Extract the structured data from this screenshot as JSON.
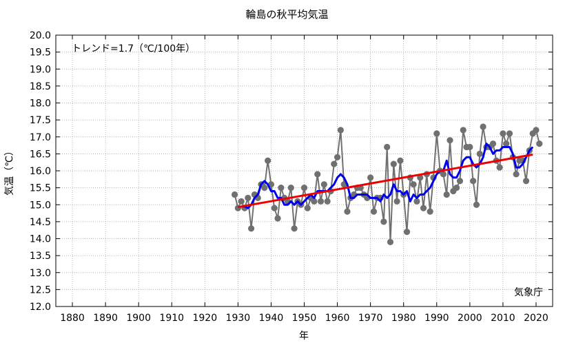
{
  "chart_data": {
    "type": "line",
    "title": "輪島の秋平均気温",
    "xlabel": "年",
    "ylabel": "気温（℃）",
    "xlim": [
      1875,
      2025
    ],
    "ylim": [
      12.0,
      20.0
    ],
    "grid": true,
    "x_ticks": [
      1880,
      1890,
      1900,
      1910,
      1920,
      1930,
      1940,
      1950,
      1960,
      1970,
      1980,
      1990,
      2000,
      2010,
      2020
    ],
    "y_ticks": [
      12.0,
      12.5,
      13.0,
      13.5,
      14.0,
      14.5,
      15.0,
      15.5,
      16.0,
      16.5,
      17.0,
      17.5,
      18.0,
      18.5,
      19.0,
      19.5,
      20.0
    ],
    "trend_label": "トレンド=1.7（℃/100年）",
    "source_label": "気象庁",
    "colors": {
      "annual": "#707070",
      "moving_average": "#0000ee",
      "trend": "#ee0000",
      "grid": "#999999"
    },
    "series": [
      {
        "kind": "annual",
        "x": [
          1929,
          1930,
          1931,
          1932,
          1933,
          1934,
          1935,
          1936,
          1937,
          1938,
          1939,
          1940,
          1941,
          1942,
          1943,
          1944,
          1945,
          1946,
          1947,
          1948,
          1949,
          1950,
          1951,
          1952,
          1953,
          1954,
          1955,
          1956,
          1957,
          1958,
          1959,
          1960,
          1961,
          1962,
          1963,
          1964,
          1965,
          1966,
          1967,
          1968,
          1969,
          1970,
          1971,
          1972,
          1973,
          1974,
          1975,
          1976,
          1977,
          1978,
          1979,
          1980,
          1981,
          1982,
          1983,
          1984,
          1985,
          1986,
          1987,
          1988,
          1989,
          1990,
          1991,
          1992,
          1993,
          1994,
          1995,
          1996,
          1997,
          1998,
          1999,
          2000,
          2001,
          2002,
          2003,
          2004,
          2005,
          2006,
          2007,
          2008,
          2009,
          2010,
          2011,
          2012,
          2013,
          2014,
          2015,
          2016,
          2017,
          2018,
          2019,
          2020,
          2021
        ],
        "values": [
          15.3,
          14.9,
          15.1,
          14.9,
          15.2,
          14.3,
          15.3,
          15.2,
          15.6,
          15.5,
          16.3,
          15.6,
          14.9,
          14.6,
          15.5,
          15.2,
          15.1,
          15.5,
          14.3,
          15.1,
          15.0,
          15.5,
          14.9,
          15.2,
          15.1,
          15.9,
          15.1,
          15.6,
          15.1,
          15.4,
          16.2,
          16.4,
          17.2,
          15.6,
          14.8,
          15.2,
          15.3,
          15.5,
          15.5,
          15.3,
          15.2,
          15.8,
          14.8,
          15.2,
          15.2,
          14.5,
          16.7,
          13.9,
          16.2,
          15.1,
          16.3,
          15.3,
          14.2,
          15.8,
          15.6,
          15.1,
          15.8,
          14.9,
          15.9,
          14.8,
          15.8,
          17.1,
          16.0,
          15.9,
          15.3,
          16.9,
          15.4,
          15.5,
          15.7,
          17.2,
          16.7,
          16.7,
          15.7,
          15.0,
          16.5,
          17.3,
          16.7,
          16.7,
          16.8,
          16.3,
          16.1,
          17.1,
          16.8,
          17.1,
          16.4,
          15.9,
          16.3,
          16.3,
          15.7,
          16.6,
          17.1,
          17.2,
          16.8
        ]
      },
      {
        "kind": "moving_average",
        "x": [
          1931,
          1932,
          1933,
          1934,
          1935,
          1936,
          1937,
          1938,
          1939,
          1940,
          1941,
          1942,
          1943,
          1944,
          1945,
          1946,
          1947,
          1948,
          1949,
          1950,
          1951,
          1952,
          1953,
          1954,
          1955,
          1956,
          1957,
          1958,
          1959,
          1960,
          1961,
          1962,
          1963,
          1964,
          1965,
          1966,
          1967,
          1968,
          1969,
          1970,
          1971,
          1972,
          1973,
          1974,
          1975,
          1976,
          1977,
          1978,
          1979,
          1980,
          1981,
          1982,
          1983,
          1984,
          1985,
          1986,
          1987,
          1988,
          1989,
          1990,
          1991,
          1992,
          1993,
          1994,
          1995,
          1996,
          1997,
          1998,
          1999,
          2000,
          2001,
          2002,
          2003,
          2004,
          2005,
          2006,
          2007,
          2008,
          2009,
          2010,
          2011,
          2012,
          2013,
          2014,
          2015,
          2016,
          2017,
          2018,
          2019
        ],
        "values": [
          14.95,
          14.95,
          14.9,
          15.0,
          15.2,
          15.3,
          15.6,
          15.7,
          15.6,
          15.4,
          15.4,
          15.2,
          15.2,
          15.0,
          15.0,
          15.1,
          15.0,
          15.1,
          15.0,
          15.1,
          15.2,
          15.3,
          15.2,
          15.4,
          15.4,
          15.4,
          15.4,
          15.5,
          15.6,
          15.8,
          15.9,
          15.8,
          15.6,
          15.2,
          15.2,
          15.3,
          15.3,
          15.3,
          15.3,
          15.2,
          15.2,
          15.2,
          15.1,
          15.3,
          15.2,
          15.3,
          15.6,
          15.4,
          15.4,
          15.3,
          15.4,
          15.1,
          15.3,
          15.2,
          15.3,
          15.3,
          15.4,
          15.5,
          15.7,
          15.9,
          16.0,
          16.0,
          16.3,
          15.9,
          15.8,
          15.8,
          16.0,
          16.3,
          16.4,
          16.4,
          16.2,
          16.1,
          16.2,
          16.4,
          16.8,
          16.7,
          16.5,
          16.6,
          16.6,
          16.7,
          16.7,
          16.7,
          16.5,
          16.1,
          16.1,
          16.2,
          16.4,
          16.6,
          16.7
        ]
      },
      {
        "kind": "trend",
        "x": [
          1930,
          2019
        ],
        "values": [
          14.93,
          16.48
        ]
      }
    ]
  }
}
